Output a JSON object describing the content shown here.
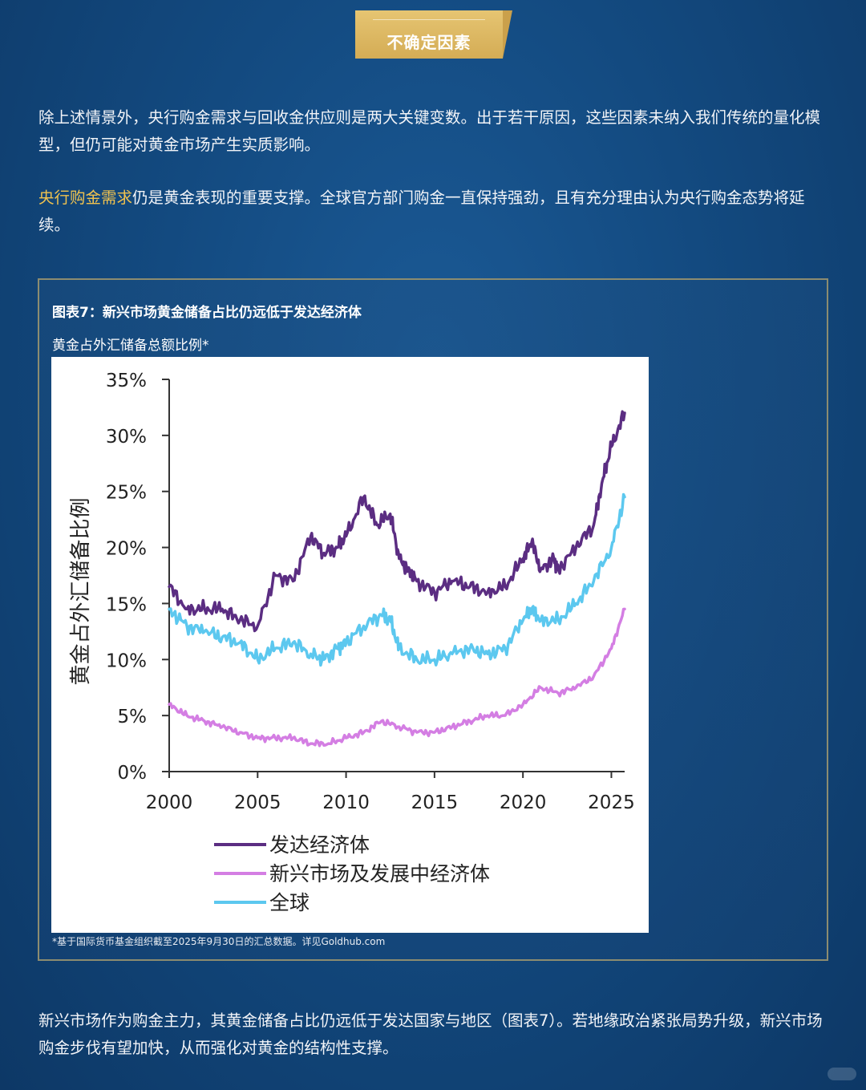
{
  "header": {
    "badge_label": "不确定因素"
  },
  "intro": {
    "paragraph1": "除上述情景外，央行购金需求与回收金供应则是两大关键变数。出于若干原因，这些因素未纳入我们传统的量化模型，但仍可能对黄金市场产生实质影响。",
    "paragraph2_highlight": "央行购金需求",
    "paragraph2_rest": "仍是黄金表现的重要支撑。全球官方部门购金一直保持强劲，且有充分理由认为央行购金态势将延续。"
  },
  "figure": {
    "title": "图表7：新兴市场黄金储备占比仍远低于发达经济体",
    "subtitle": "黄金占外汇储备总额比例*",
    "footnote": "*基于国际货币基金组织截至2025年9月30日的汇总数据。详见Goldhub.com"
  },
  "chart_data": {
    "type": "line",
    "ylabel": "黄金占外汇储备比例",
    "y_ticks": [
      "0%",
      "5%",
      "10%",
      "15%",
      "20%",
      "25%",
      "30%",
      "35%"
    ],
    "x_ticks": [
      "2000",
      "2005",
      "2010",
      "2015",
      "2020",
      "2025"
    ],
    "xlim": [
      2000,
      2025.75
    ],
    "ylim": [
      0,
      35
    ],
    "legend_position": "bottom-left",
    "grid": false,
    "series": [
      {
        "name": "发达经济体",
        "color": "#5b2d82",
        "x": [
          2000,
          2001,
          2002,
          2003,
          2004,
          2005,
          2006,
          2007,
          2008,
          2008.75,
          2009.5,
          2010,
          2011,
          2011.75,
          2012.5,
          2013,
          2013.5,
          2014,
          2015,
          2016,
          2017,
          2018,
          2019,
          2020,
          2020.5,
          2021,
          2021.75,
          2022,
          2023,
          2024,
          2024.5,
          2025,
          2025.75
        ],
        "y": [
          16.5,
          14.5,
          14.5,
          14.5,
          13.5,
          13.0,
          17.5,
          17.0,
          21.0,
          19.5,
          20.0,
          21.0,
          24.5,
          22.0,
          23.0,
          19.0,
          18.0,
          17.0,
          16.0,
          17.0,
          16.5,
          16.0,
          16.5,
          19.0,
          20.5,
          18.0,
          19.0,
          18.0,
          20.0,
          22.0,
          26.0,
          29.0,
          32.0
        ]
      },
      {
        "name": "新兴市场及发展中经济体",
        "color": "#d47ee3",
        "x": [
          2000,
          2001,
          2002,
          2003,
          2004,
          2005,
          2006,
          2007,
          2008,
          2009,
          2010,
          2011,
          2012,
          2013,
          2014,
          2015,
          2016,
          2017,
          2018,
          2019,
          2020,
          2021,
          2022,
          2023,
          2024,
          2025,
          2025.75
        ],
        "y": [
          6.0,
          5.0,
          4.5,
          4.0,
          3.5,
          3.0,
          3.0,
          3.0,
          2.5,
          2.5,
          3.0,
          3.5,
          4.5,
          4.0,
          3.5,
          3.5,
          4.0,
          4.5,
          5.0,
          5.0,
          6.0,
          7.5,
          7.0,
          7.5,
          8.5,
          11.0,
          14.5
        ]
      },
      {
        "name": "全球",
        "color": "#5cc8ef",
        "x": [
          2000,
          2001,
          2002,
          2003,
          2004,
          2005,
          2006,
          2007,
          2008,
          2008.75,
          2009.5,
          2010,
          2011,
          2012,
          2012.5,
          2013,
          2014,
          2015,
          2016,
          2017,
          2018,
          2019,
          2020,
          2020.5,
          2021,
          2022,
          2023,
          2024,
          2025,
          2025.75
        ],
        "y": [
          14.5,
          13.0,
          12.5,
          12.0,
          11.5,
          10.0,
          11.0,
          11.5,
          10.5,
          10.0,
          11.0,
          11.5,
          13.0,
          14.0,
          13.5,
          11.0,
          10.0,
          10.0,
          10.5,
          11.0,
          10.5,
          11.0,
          13.5,
          14.5,
          13.5,
          13.5,
          15.0,
          17.0,
          20.0,
          24.5
        ]
      }
    ]
  },
  "closing": {
    "paragraph": "新兴市场作为购金主力，其黄金储备占比仍远低于发达国家与地区（图表7）。若地缘政治紧张局势升级，新兴市场购金步伐有望加快，从而强化对黄金的结构性支撑。"
  }
}
